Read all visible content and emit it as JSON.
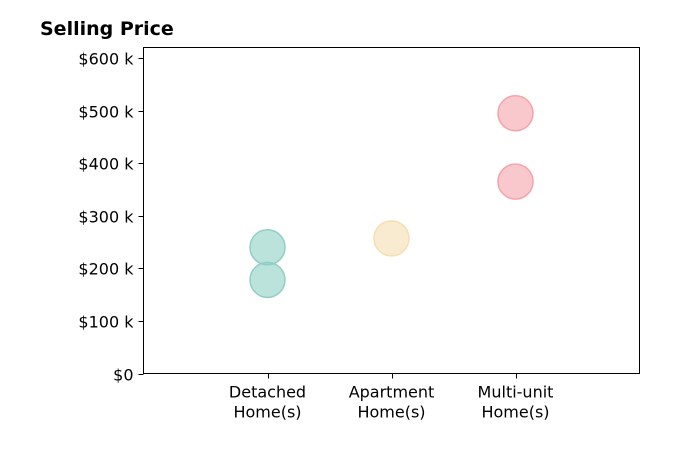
{
  "chart_data": {
    "type": "scatter",
    "title": "Selling Price",
    "xlabel": "",
    "ylabel": "",
    "categories": [
      [
        "Detached",
        "Home(s)"
      ],
      [
        "Apartment",
        "Home(s)"
      ],
      [
        "Multi-unit",
        "Home(s)"
      ]
    ],
    "series": [
      {
        "category_index": 0,
        "values": [
          240000,
          178000
        ],
        "color": "#8fcfc5"
      },
      {
        "category_index": 1,
        "values": [
          257000
        ],
        "color": "#f5deb0"
      },
      {
        "category_index": 2,
        "values": [
          495000,
          365000
        ],
        "color": "#f4a3ab"
      }
    ],
    "ylim": [
      0,
      620000
    ],
    "xlim": [
      -1,
      3
    ],
    "yticks": [
      0,
      100000,
      200000,
      300000,
      400000,
      500000,
      600000
    ],
    "ytick_labels": [
      "$0",
      "$100 k",
      "$200 k",
      "$300 k",
      "$400 k",
      "$500 k",
      "$600 k"
    ],
    "grid": false,
    "legend": "none",
    "marker_opacity": 0.6
  }
}
